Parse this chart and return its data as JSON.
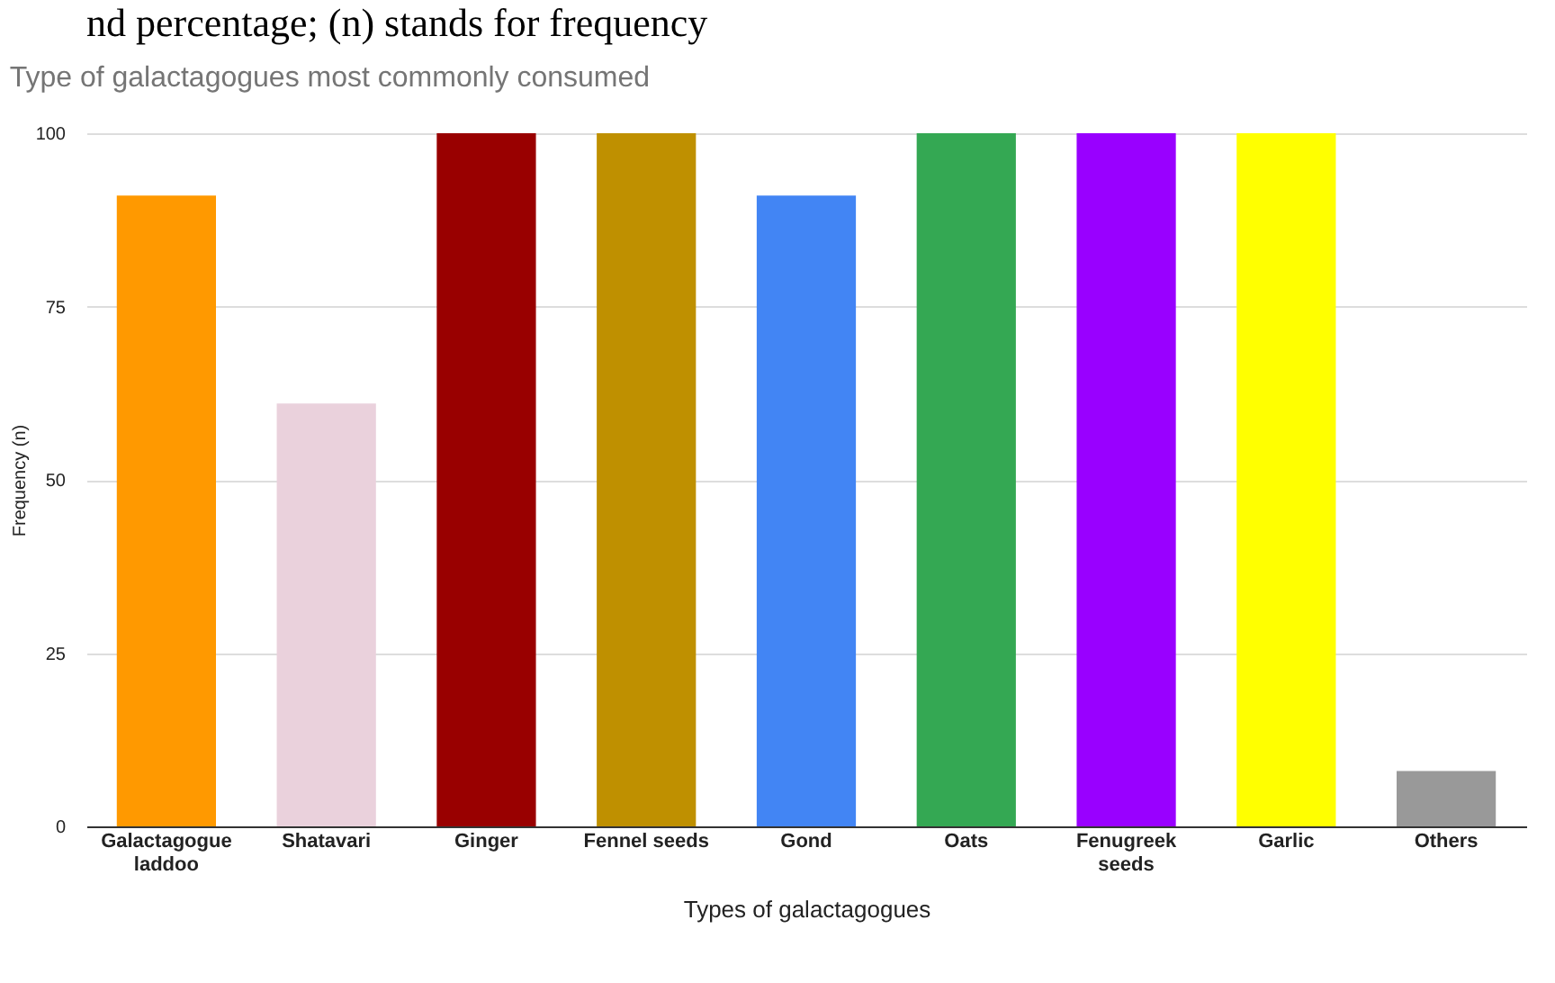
{
  "chart_data": {
    "type": "bar",
    "title": "Type of galactagogues most commonly consumed",
    "xlabel": "Types of galactagogues",
    "ylabel": "Frequency (n)",
    "annotations": [
      "nd percentage; (n) stands for frequency"
    ],
    "categories": [
      "Galactagogue laddoo",
      "Shatavari",
      "Ginger",
      "Fennel seeds",
      "Gond",
      "Oats",
      "Fenugreek seeds",
      "Garlic",
      "Others"
    ],
    "values": [
      91,
      61,
      100,
      100,
      91,
      100,
      100,
      100,
      8
    ],
    "colors": [
      "#ff9900",
      "#ead1dc",
      "#990000",
      "#bf9000",
      "#4285f4",
      "#34a853",
      "#9900ff",
      "#ffff00",
      "#999999"
    ],
    "ylim": [
      0,
      100
    ],
    "yticks": [
      0,
      25,
      50,
      75,
      100
    ],
    "grid": "y",
    "legend": false
  }
}
